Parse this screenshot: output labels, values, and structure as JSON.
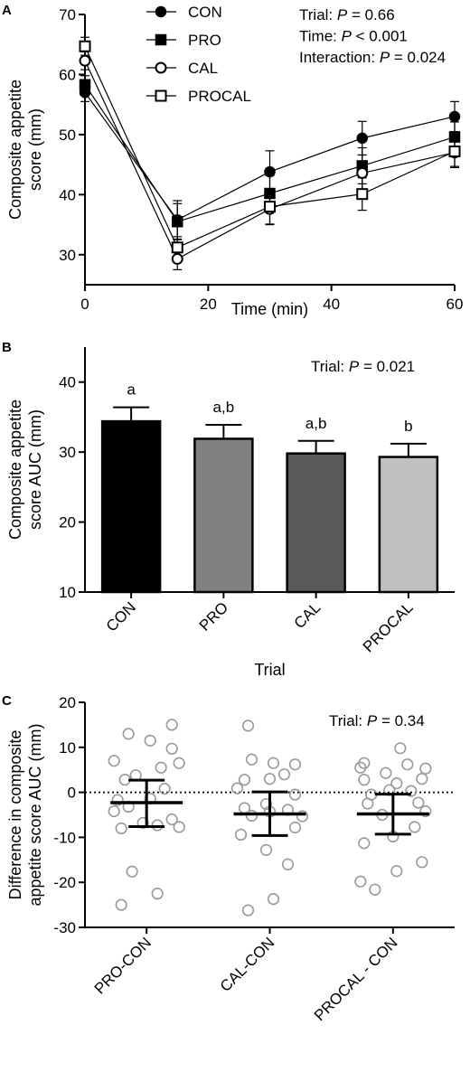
{
  "chart_data": [
    {
      "panel": "A",
      "type": "line",
      "xlabel": "Time (min)",
      "ylabel": "Composite appetite score (mm)",
      "xlim": [
        0,
        60
      ],
      "ylim": [
        25,
        70
      ],
      "x_ticks": [
        "0",
        "20",
        "40",
        "60"
      ],
      "y_ticks": [
        "30",
        "40",
        "50",
        "60",
        "70"
      ],
      "x": [
        0,
        15,
        30,
        45,
        60
      ],
      "series": [
        {
          "name": "CON",
          "marker": "filled-circle",
          "values": [
            57.0,
            35.8,
            43.8,
            49.4,
            53.0
          ],
          "err": [
            1.5,
            3.2,
            3.5,
            2.8,
            2.5
          ]
        },
        {
          "name": "PRO",
          "marker": "filled-square",
          "values": [
            58.3,
            35.5,
            40.2,
            44.8,
            49.6
          ],
          "err": [
            1.5,
            3.0,
            3.0,
            3.0,
            2.5
          ]
        },
        {
          "name": "CAL",
          "marker": "open-circle",
          "values": [
            62.3,
            29.3,
            37.6,
            43.6,
            47.0
          ],
          "err": [
            1.5,
            1.8,
            2.5,
            3.0,
            2.5
          ]
        },
        {
          "name": "PROCAL",
          "marker": "open-square",
          "values": [
            64.7,
            31.2,
            38.0,
            40.1,
            47.2
          ],
          "err": [
            1.5,
            1.8,
            3.0,
            2.7,
            2.5
          ]
        }
      ],
      "stats": [
        {
          "label": "Trial: ",
          "p": "P",
          "value": " = 0.66"
        },
        {
          "label": "Time: ",
          "p": "P",
          "value": " < 0.001"
        },
        {
          "label": "Interaction: ",
          "p": "P",
          "value": " = 0.024"
        }
      ]
    },
    {
      "panel": "B",
      "type": "bar",
      "xlabel": "Trial",
      "ylabel": "Composite appetite score AUC (mm)",
      "ylim": [
        10,
        45
      ],
      "y_ticks": [
        "10",
        "20",
        "30",
        "40"
      ],
      "categories": [
        "CON",
        "PRO",
        "CAL",
        "PROCAL"
      ],
      "values": [
        34.4,
        31.9,
        29.8,
        29.3
      ],
      "err": [
        2.0,
        2.0,
        1.8,
        1.9
      ],
      "bar_colors": [
        "#000000",
        "#808080",
        "#595959",
        "#c0c0c0"
      ],
      "significance": [
        "a",
        "a,b",
        "a,b",
        "b"
      ],
      "stats": [
        {
          "label": "Trial: ",
          "p": "P",
          "value": " = 0.021"
        }
      ]
    },
    {
      "panel": "C",
      "type": "scatter",
      "ylabel": "Difference in composite appetite score AUC (mm)",
      "ylim": [
        -30,
        20
      ],
      "y_ticks": [
        "-30",
        "-20",
        "-10",
        "0",
        "10",
        "20"
      ],
      "categories": [
        "PRO-CON",
        "CAL-CON",
        "PROCAL - CON"
      ],
      "points": [
        [
          15.0,
          13.0,
          11.5,
          9.7,
          7.0,
          6.5,
          5.5,
          3.8,
          2.8,
          0.8,
          -1.4,
          -1.7,
          -3.2,
          -4.2,
          -6.0,
          -6.8,
          -7.3,
          -7.7,
          -8.0,
          -17.6,
          -22.5,
          -25.0
        ],
        [
          14.8,
          7.3,
          6.5,
          6.2,
          4.0,
          3.0,
          2.8,
          0.9,
          -0.5,
          -2.6,
          -3.5,
          -3.9,
          -4.3,
          -5.2,
          -5.3,
          -7.8,
          -9.4,
          -12.8,
          -16.0,
          -23.7,
          -26.2
        ],
        [
          9.8,
          6.5,
          6.2,
          5.5,
          5.3,
          4.3,
          3.0,
          2.8,
          2.0,
          0.5,
          0.3,
          -0.5,
          -2.3,
          -2.5,
          -4.2,
          -5.0,
          -7.7,
          -9.8,
          -11.3,
          -15.5,
          -17.5,
          -19.8,
          -21.6
        ]
      ],
      "x_offsets": [
        [
          0.35,
          -0.25,
          0.05,
          0.35,
          -0.45,
          0.45,
          0.2,
          -0.15,
          -0.3,
          0.25,
          0.05,
          -0.4,
          -0.25,
          -0.45,
          0.35,
          -0.05,
          0.15,
          0.45,
          -0.35,
          -0.2,
          0.15,
          -0.35
        ],
        [
          -0.3,
          -0.25,
          0.05,
          0.35,
          0.2,
          0.0,
          -0.35,
          -0.45,
          0.35,
          -0.05,
          -0.35,
          0.25,
          0.0,
          -0.25,
          0.45,
          0.35,
          -0.4,
          -0.05,
          0.25,
          0.05,
          -0.3
        ],
        [
          0.1,
          -0.4,
          0.2,
          -0.45,
          0.45,
          -0.1,
          0.4,
          -0.4,
          0.05,
          -0.05,
          0.25,
          -0.3,
          0.35,
          -0.35,
          0.45,
          -0.15,
          0.3,
          0.0,
          -0.4,
          0.4,
          0.05,
          -0.45,
          -0.25
        ]
      ],
      "mean": [
        -2.3,
        -4.8,
        -4.8
      ],
      "ci_low": [
        -7.6,
        -9.6,
        -9.3
      ],
      "ci_high": [
        2.7,
        0.1,
        -0.4
      ],
      "stats": [
        {
          "label": "Trial: ",
          "p": "P",
          "value": " = 0.34"
        }
      ]
    }
  ]
}
